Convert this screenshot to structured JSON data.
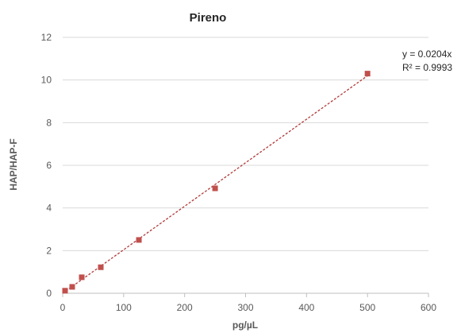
{
  "chart_data": {
    "type": "scatter",
    "title": "Pireno",
    "xlabel": "pg/µL",
    "ylabel": "HAP/HAP-F",
    "xlim": [
      0,
      600
    ],
    "ylim": [
      0,
      12
    ],
    "x_ticks": [
      0,
      100,
      200,
      300,
      400,
      500,
      600
    ],
    "y_ticks": [
      0,
      2,
      4,
      6,
      8,
      10,
      12
    ],
    "grid": "horizontal",
    "legend": "none",
    "series": [
      {
        "x": [
          3.9,
          15.6,
          31.25,
          62.5,
          125,
          250,
          500
        ],
        "y": [
          0.12,
          0.3,
          0.75,
          1.22,
          2.5,
          4.92,
          10.3
        ],
        "marker": "square",
        "color": "#c0504d"
      }
    ],
    "trendline": {
      "type": "linear",
      "slope": 0.0204,
      "intercept": 0,
      "x_range": [
        0,
        500
      ],
      "color": "#b03a3a",
      "style": "dashed"
    },
    "annotations": {
      "equation": "y = 0.0204x",
      "r_squared": "R² = 0.9993"
    }
  }
}
